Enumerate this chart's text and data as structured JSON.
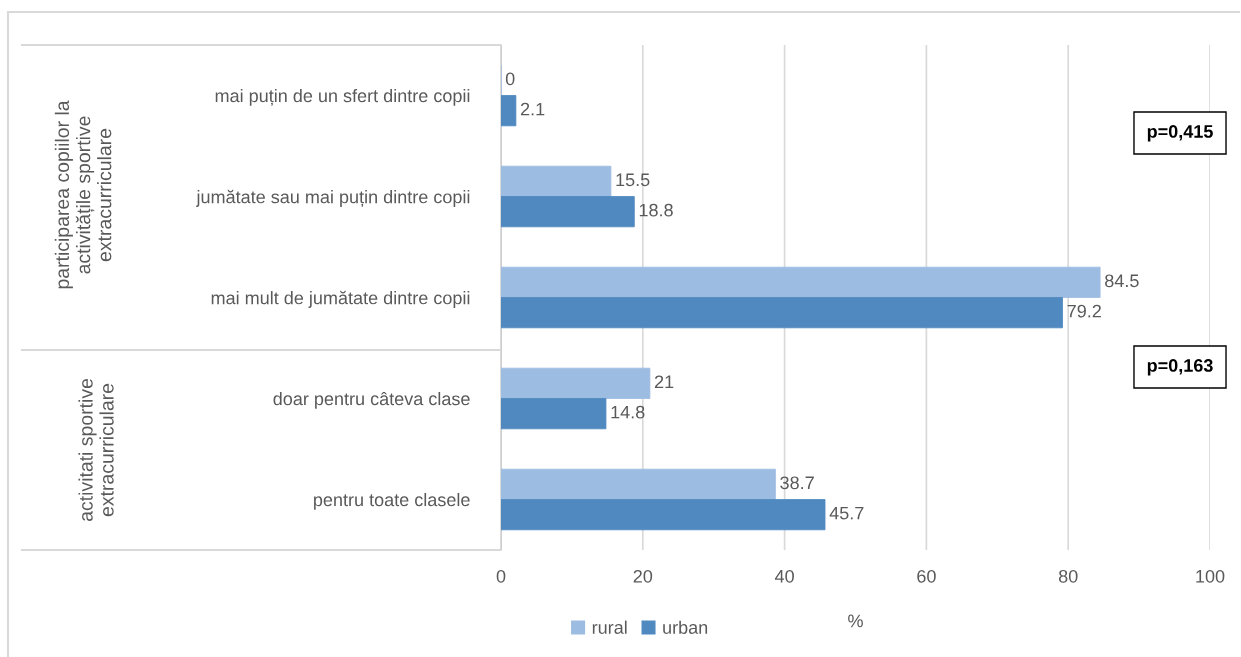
{
  "chart_data": {
    "type": "bar",
    "orientation": "horizontal",
    "xlabel": "%",
    "categories": [
      "mai puțin de un sfert dintre copii",
      "jumătate sau mai puțin dintre copii",
      "mai mult de jumătate dintre copii",
      "doar pentru câteva clase",
      "pentru toate clasele"
    ],
    "series": [
      {
        "name": "rural",
        "color": "#9dbce2",
        "values": [
          0,
          15.5,
          84.5,
          21,
          38.7
        ]
      },
      {
        "name": "urban",
        "color": "#4f89c0",
        "values": [
          2.1,
          18.8,
          79.2,
          14.8,
          45.7
        ]
      }
    ],
    "xlim": [
      0,
      100
    ],
    "xticks": [
      0,
      20,
      40,
      60,
      80,
      100
    ],
    "grid": "x",
    "legend": "bottom",
    "data_labels": true,
    "annotations": [
      "participarea copiilor la\nactivitățile sportive\nextracurriculare",
      "activitati sportive\nextracurriculare",
      "p=0,415",
      "p=0,163"
    ]
  }
}
